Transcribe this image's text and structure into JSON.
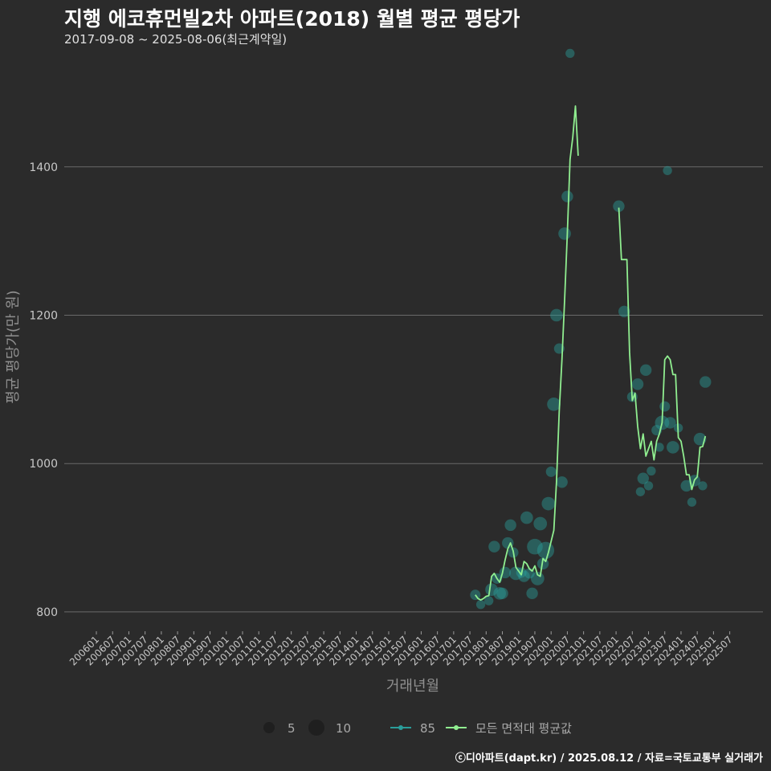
{
  "header": {
    "title": "지행 에코휴먼빌2차 아파트(2018) 월별 평균 평당가",
    "subtitle": "2017-09-08 ~ 2025-08-06(최근계약일)"
  },
  "footer": {
    "text": "ⓒ디아파트(dapt.kr) / 2025.08.12 / 자료=국토교통부 실거래가"
  },
  "colors": {
    "background": "#2b2b2b",
    "grid": "#6a6a6a",
    "series_85": "#2a9d9a",
    "series_avg": "#90ee90"
  },
  "chart_data": {
    "type": "line",
    "xlabel": "거래년월",
    "ylabel": "평균 평당가(만 원)",
    "ylim": [
      775,
      1560
    ],
    "yticks": [
      800,
      1000,
      1200,
      1400
    ],
    "x_start": "200601",
    "x_end": "202508",
    "xtick_labels": [
      "200601",
      "200607",
      "200701",
      "200707",
      "200801",
      "200807",
      "200901",
      "200907",
      "201001",
      "201007",
      "201101",
      "201107",
      "201201",
      "201207",
      "201301",
      "201307",
      "201401",
      "201407",
      "201501",
      "201507",
      "201601",
      "201607",
      "201701",
      "201707",
      "201801",
      "201807",
      "201901",
      "201907",
      "202001",
      "202007",
      "202101",
      "202107",
      "202201",
      "202207",
      "202301",
      "202307",
      "202401",
      "202407",
      "202501",
      "202507"
    ],
    "legend": {
      "size_items": [
        {
          "label": "5",
          "value": 5
        },
        {
          "label": "10",
          "value": 10
        }
      ],
      "series_items": [
        {
          "label": "85",
          "color": "#2a9d9a"
        },
        {
          "label": "모든 면적대 평균값",
          "color": "#90ee90"
        }
      ]
    },
    "series": [
      {
        "name": "모든 면적대 평균값",
        "segments": [
          [
            {
              "x": "201709",
              "y": 823
            },
            {
              "x": "201710",
              "y": 818
            },
            {
              "x": "201711",
              "y": 816
            },
            {
              "x": "201712",
              "y": 818
            },
            {
              "x": "201801",
              "y": 821
            },
            {
              "x": "201802",
              "y": 822
            },
            {
              "x": "201803",
              "y": 848
            },
            {
              "x": "201804",
              "y": 852
            },
            {
              "x": "201805",
              "y": 845
            },
            {
              "x": "201806",
              "y": 840
            },
            {
              "x": "201807",
              "y": 852
            },
            {
              "x": "201808",
              "y": 870
            },
            {
              "x": "201809",
              "y": 885
            },
            {
              "x": "201810",
              "y": 893
            },
            {
              "x": "201811",
              "y": 882
            },
            {
              "x": "201812",
              "y": 860
            },
            {
              "x": "201901",
              "y": 855
            },
            {
              "x": "201902",
              "y": 850
            },
            {
              "x": "201903",
              "y": 868
            },
            {
              "x": "201904",
              "y": 865
            },
            {
              "x": "201905",
              "y": 858
            },
            {
              "x": "201906",
              "y": 855
            },
            {
              "x": "201907",
              "y": 862
            },
            {
              "x": "201908",
              "y": 850
            },
            {
              "x": "201909",
              "y": 848
            },
            {
              "x": "201910",
              "y": 872
            },
            {
              "x": "201911",
              "y": 868
            },
            {
              "x": "201912",
              "y": 880
            },
            {
              "x": "202001",
              "y": 895
            },
            {
              "x": "202002",
              "y": 910
            },
            {
              "x": "202003",
              "y": 975
            },
            {
              "x": "202004",
              "y": 1070
            },
            {
              "x": "202005",
              "y": 1140
            },
            {
              "x": "202006",
              "y": 1220
            },
            {
              "x": "202007",
              "y": 1310
            },
            {
              "x": "202008",
              "y": 1410
            },
            {
              "x": "202009",
              "y": 1440
            },
            {
              "x": "202010",
              "y": 1482
            },
            {
              "x": "202011",
              "y": 1415
            }
          ],
          [
            {
              "x": "202202",
              "y": 1345
            },
            {
              "x": "202203",
              "y": 1275
            },
            {
              "x": "202204",
              "y": 1275
            },
            {
              "x": "202205",
              "y": 1275
            },
            {
              "x": "202206",
              "y": 1150
            },
            {
              "x": "202207",
              "y": 1085
            },
            {
              "x": "202208",
              "y": 1095
            },
            {
              "x": "202209",
              "y": 1050
            },
            {
              "x": "202210",
              "y": 1020
            },
            {
              "x": "202211",
              "y": 1040
            },
            {
              "x": "202212",
              "y": 1010
            },
            {
              "x": "202301",
              "y": 1020
            },
            {
              "x": "202302",
              "y": 1030
            },
            {
              "x": "202303",
              "y": 1005
            },
            {
              "x": "202304",
              "y": 1030
            },
            {
              "x": "202305",
              "y": 1040
            },
            {
              "x": "202306",
              "y": 1055
            },
            {
              "x": "202307",
              "y": 1140
            },
            {
              "x": "202308",
              "y": 1145
            },
            {
              "x": "202309",
              "y": 1140
            },
            {
              "x": "202310",
              "y": 1120
            },
            {
              "x": "202311",
              "y": 1120
            },
            {
              "x": "202312",
              "y": 1035
            },
            {
              "x": "202401",
              "y": 1030
            },
            {
              "x": "202402",
              "y": 1010
            },
            {
              "x": "202403",
              "y": 985
            },
            {
              "x": "202404",
              "y": 985
            },
            {
              "x": "202405",
              "y": 965
            },
            {
              "x": "202406",
              "y": 978
            },
            {
              "x": "202407",
              "y": 982
            },
            {
              "x": "202408",
              "y": 1022
            },
            {
              "x": "202409",
              "y": 1023
            },
            {
              "x": "202410",
              "y": 1037
            }
          ]
        ]
      },
      {
        "name": "85",
        "points": [
          {
            "x": "201709",
            "y": 823,
            "n": 3
          },
          {
            "x": "201711",
            "y": 810,
            "n": 2
          },
          {
            "x": "201802",
            "y": 815,
            "n": 2
          },
          {
            "x": "201803",
            "y": 830,
            "n": 5
          },
          {
            "x": "201804",
            "y": 888,
            "n": 4
          },
          {
            "x": "201805",
            "y": 845,
            "n": 3
          },
          {
            "x": "201806",
            "y": 825,
            "n": 5
          },
          {
            "x": "201807",
            "y": 825,
            "n": 4
          },
          {
            "x": "201808",
            "y": 853,
            "n": 4
          },
          {
            "x": "201809",
            "y": 893,
            "n": 4
          },
          {
            "x": "201810",
            "y": 917,
            "n": 4
          },
          {
            "x": "201811",
            "y": 880,
            "n": 3
          },
          {
            "x": "201812",
            "y": 852,
            "n": 6
          },
          {
            "x": "201902",
            "y": 853,
            "n": 3
          },
          {
            "x": "201903",
            "y": 848,
            "n": 4
          },
          {
            "x": "201904",
            "y": 927,
            "n": 5
          },
          {
            "x": "201905",
            "y": 852,
            "n": 3
          },
          {
            "x": "201906",
            "y": 825,
            "n": 4
          },
          {
            "x": "201907",
            "y": 888,
            "n": 9
          },
          {
            "x": "201908",
            "y": 845,
            "n": 6
          },
          {
            "x": "201909",
            "y": 919,
            "n": 6
          },
          {
            "x": "201910",
            "y": 865,
            "n": 4
          },
          {
            "x": "201911",
            "y": 883,
            "n": 11
          },
          {
            "x": "201912",
            "y": 946,
            "n": 6
          },
          {
            "x": "202001",
            "y": 989,
            "n": 3
          },
          {
            "x": "202002",
            "y": 1080,
            "n": 6
          },
          {
            "x": "202003",
            "y": 1200,
            "n": 5
          },
          {
            "x": "202004",
            "y": 1155,
            "n": 3
          },
          {
            "x": "202005",
            "y": 975,
            "n": 4
          },
          {
            "x": "202006",
            "y": 1310,
            "n": 5
          },
          {
            "x": "202007",
            "y": 1360,
            "n": 4
          },
          {
            "x": "202008",
            "y": 1553,
            "n": 2
          },
          {
            "x": "202202",
            "y": 1347,
            "n": 4
          },
          {
            "x": "202204",
            "y": 1205,
            "n": 4
          },
          {
            "x": "202207",
            "y": 1090,
            "n": 3
          },
          {
            "x": "202209",
            "y": 1107,
            "n": 4
          },
          {
            "x": "202210",
            "y": 962,
            "n": 2
          },
          {
            "x": "202211",
            "y": 980,
            "n": 4
          },
          {
            "x": "202212",
            "y": 1126,
            "n": 4
          },
          {
            "x": "202301",
            "y": 970,
            "n": 2
          },
          {
            "x": "202302",
            "y": 990,
            "n": 2
          },
          {
            "x": "202304",
            "y": 1045,
            "n": 3
          },
          {
            "x": "202305",
            "y": 1022,
            "n": 2
          },
          {
            "x": "202306",
            "y": 1055,
            "n": 7
          },
          {
            "x": "202307",
            "y": 1077,
            "n": 3
          },
          {
            "x": "202308",
            "y": 1395,
            "n": 2
          },
          {
            "x": "202309",
            "y": 1055,
            "n": 4
          },
          {
            "x": "202310",
            "y": 1022,
            "n": 5
          },
          {
            "x": "202312",
            "y": 1048,
            "n": 2
          },
          {
            "x": "202403",
            "y": 970,
            "n": 4
          },
          {
            "x": "202405",
            "y": 948,
            "n": 2
          },
          {
            "x": "202406",
            "y": 977,
            "n": 4
          },
          {
            "x": "202408",
            "y": 1033,
            "n": 5
          },
          {
            "x": "202409",
            "y": 970,
            "n": 2
          },
          {
            "x": "202410",
            "y": 1110,
            "n": 4
          }
        ]
      }
    ]
  }
}
